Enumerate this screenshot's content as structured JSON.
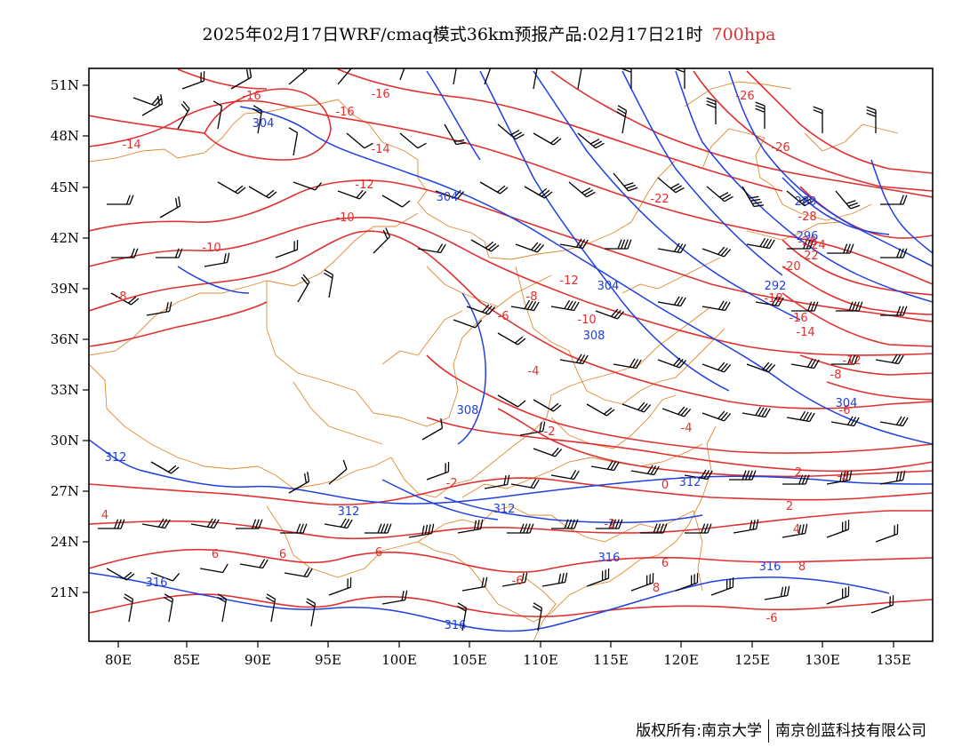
{
  "title": {
    "main": "2025年02月17日WRF/cmaq模式36km预报产品:02月17日21时",
    "level": "700hpa",
    "level_color": "#e03030"
  },
  "map": {
    "lon_ticks": [
      "80E",
      "85E",
      "90E",
      "95E",
      "100E",
      "105E",
      "110E",
      "115E",
      "120E",
      "125E",
      "130E",
      "135E"
    ],
    "lat_ticks": [
      "51N",
      "48N",
      "45N",
      "42N",
      "39N",
      "36N",
      "33N",
      "30N",
      "27N",
      "24N",
      "21N"
    ],
    "colors": {
      "temperature": "#e03030",
      "height": "#2040e0",
      "boundary": "#e08a30",
      "wind": "#000000"
    },
    "temperature_labels": [
      "-16",
      "-16",
      "-16",
      "-14",
      "-14",
      "-12",
      "-10",
      "-10",
      "-8",
      "-8",
      "-6",
      "-4",
      "-12",
      "-10",
      "-22",
      "-26",
      "-26",
      "-28",
      "-28",
      "-24",
      "-22",
      "-20",
      "-18",
      "-16",
      "-14",
      "-12",
      "-8",
      "-6",
      "-4",
      "-2",
      "-2",
      "-2",
      "0",
      "-2",
      "2",
      "2",
      "4",
      "4",
      "6",
      "6",
      "6",
      "6",
      "8",
      "8",
      "-6",
      "-6"
    ],
    "height_labels": [
      "304",
      "304",
      "304",
      "308",
      "308",
      "312",
      "312",
      "312",
      "312",
      "316",
      "316",
      "316",
      "316",
      "280",
      "292",
      "304",
      "296"
    ]
  },
  "footer": {
    "left": "版权所有:南京大学",
    "right": "南京创蓝科技有限公司"
  }
}
